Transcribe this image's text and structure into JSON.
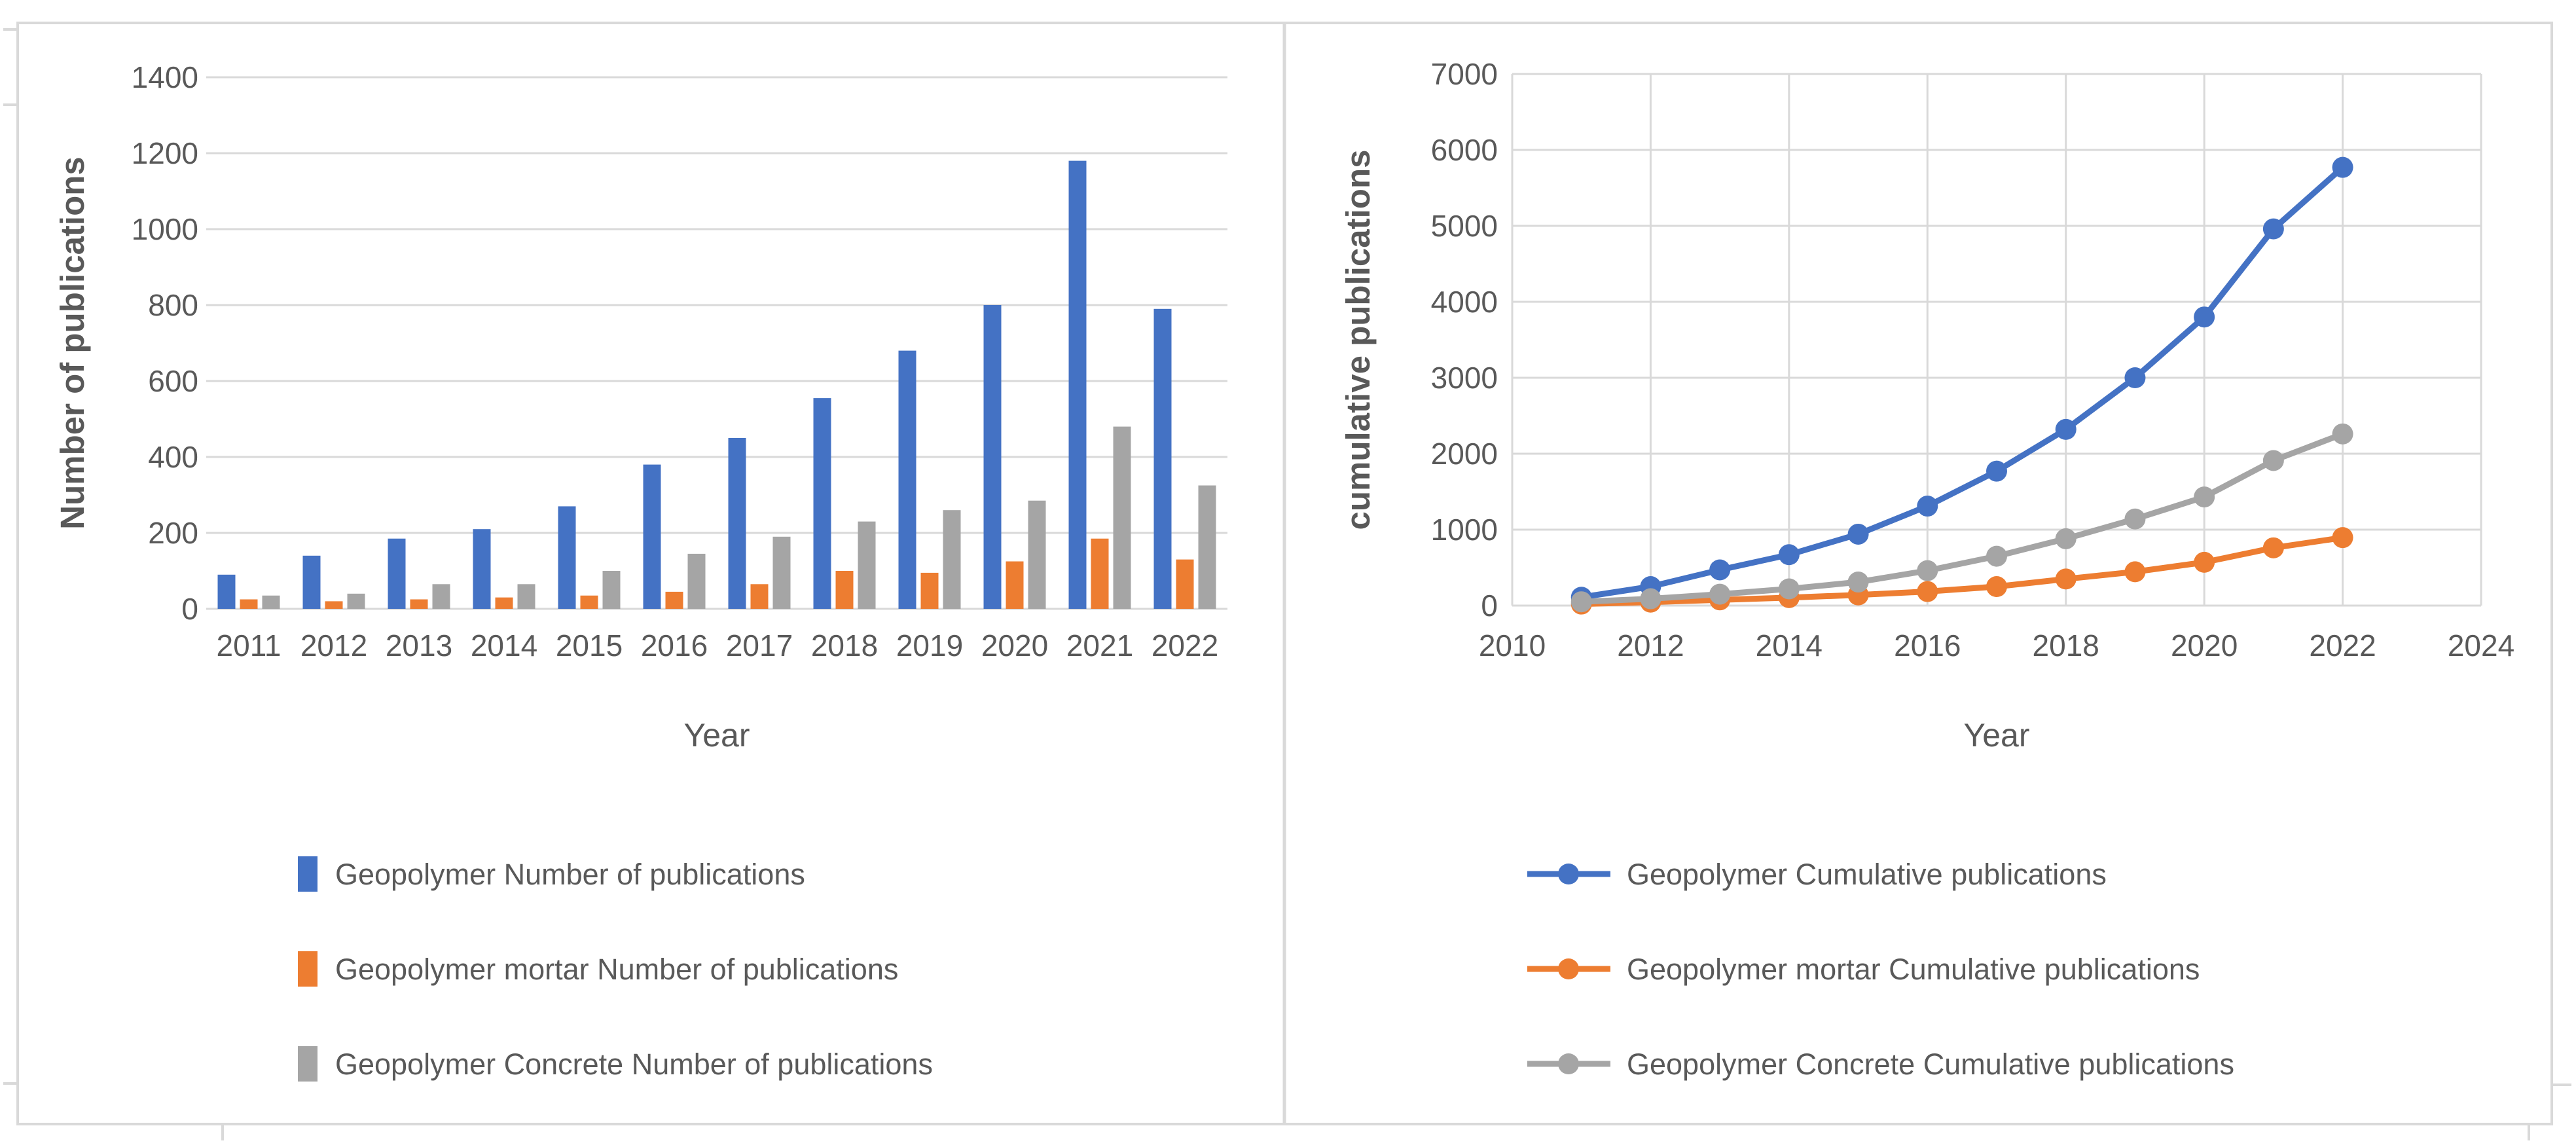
{
  "colors": {
    "blue": "#4472C4",
    "orange": "#ED7D31",
    "gray": "#A5A5A5",
    "gridline": "#D9D9D9",
    "border": "#D9D9D9",
    "text": "#595959",
    "background": "#FFFFFF"
  },
  "chart_data": [
    {
      "type": "bar",
      "title": "",
      "xlabel": "Year",
      "ylabel": "Number of publications",
      "categories": [
        "2011",
        "2012",
        "2013",
        "2014",
        "2015",
        "2016",
        "2017",
        "2018",
        "2019",
        "2020",
        "2021",
        "2022"
      ],
      "yticks": [
        0,
        200,
        400,
        600,
        800,
        1000,
        1200,
        1400
      ],
      "ylim": [
        0,
        1400
      ],
      "grid": "horizontal",
      "legend_position": "bottom-left",
      "series": [
        {
          "name": "Geopolymer Number of publications",
          "color": "#4472C4",
          "values": [
            90,
            140,
            185,
            210,
            270,
            380,
            450,
            555,
            680,
            800,
            1180,
            790
          ]
        },
        {
          "name": "Geopolymer mortar Number of publications",
          "color": "#ED7D31",
          "values": [
            25,
            20,
            25,
            30,
            35,
            45,
            65,
            100,
            95,
            125,
            185,
            130
          ]
        },
        {
          "name": "Geopolymer Concrete Number of publications",
          "color": "#A5A5A5",
          "values": [
            35,
            40,
            65,
            65,
            100,
            145,
            190,
            230,
            260,
            285,
            480,
            325
          ]
        }
      ]
    },
    {
      "type": "line",
      "title": "",
      "xlabel": "Year",
      "ylabel": "cumulative publications",
      "x": [
        2011,
        2012,
        2013,
        2014,
        2015,
        2016,
        2017,
        2018,
        2019,
        2020,
        2021,
        2022
      ],
      "xticks": [
        2010,
        2012,
        2014,
        2016,
        2018,
        2020,
        2022,
        2024
      ],
      "xlim": [
        2010,
        2024
      ],
      "yticks": [
        0,
        1000,
        2000,
        3000,
        4000,
        5000,
        6000,
        7000
      ],
      "ylim": [
        0,
        7000
      ],
      "grid": "both",
      "marker": "circle",
      "legend_position": "bottom-left",
      "series": [
        {
          "name": "Geopolymer Cumulative publications",
          "color": "#4472C4",
          "values": [
            110,
            250,
            470,
            670,
            940,
            1310,
            1770,
            2320,
            3000,
            3800,
            4960,
            5770
          ]
        },
        {
          "name": "Geopolymer mortar Cumulative publications",
          "color": "#ED7D31",
          "values": [
            20,
            45,
            75,
            105,
            140,
            185,
            250,
            350,
            445,
            570,
            760,
            895
          ]
        },
        {
          "name": "Geopolymer Concrete Cumulative publications",
          "color": "#A5A5A5",
          "values": [
            50,
            90,
            150,
            220,
            310,
            460,
            650,
            880,
            1140,
            1430,
            1910,
            2260
          ]
        }
      ]
    }
  ]
}
